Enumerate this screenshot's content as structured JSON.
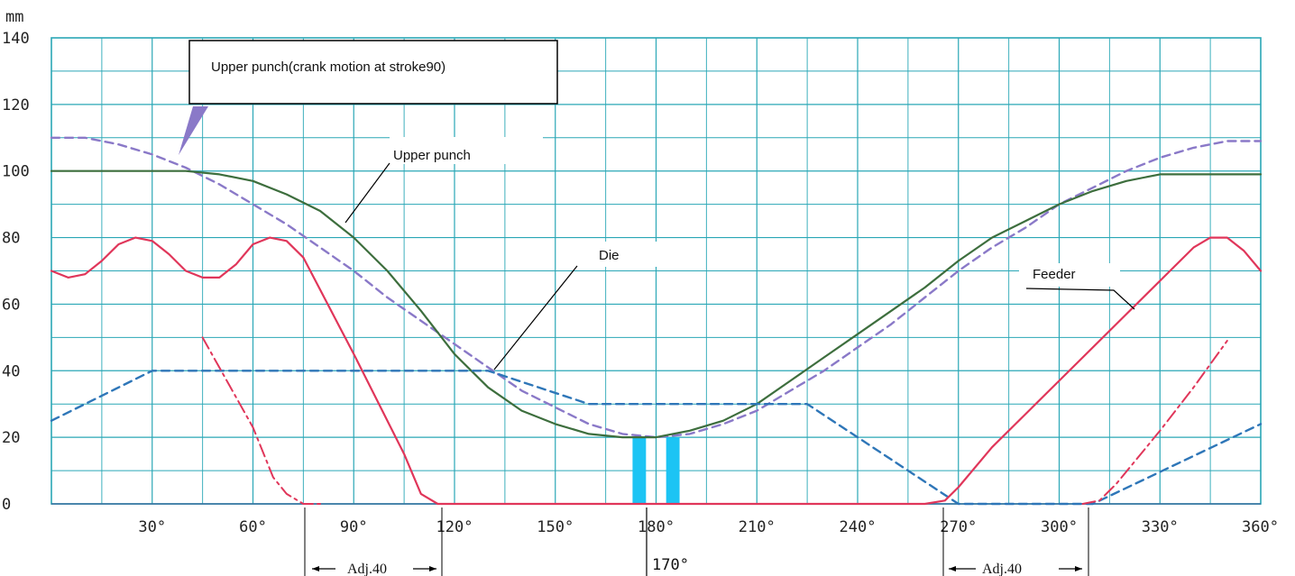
{
  "chart_data": {
    "type": "line",
    "title": "",
    "xlabel": "",
    "ylabel": "mm",
    "xlim": [
      0,
      360
    ],
    "ylim": [
      0,
      140
    ],
    "grid": true,
    "grid_color": "#2aa7b6",
    "xticks": [
      30,
      60,
      90,
      120,
      150,
      180,
      210,
      240,
      270,
      300,
      330,
      360
    ],
    "xtick_labels": [
      "30°",
      "60°",
      "90°",
      "120°",
      "150°",
      "180°",
      "210°",
      "240°",
      "270°",
      "300°",
      "330°",
      "360°"
    ],
    "yticks": [
      0,
      20,
      40,
      60,
      80,
      100,
      120,
      140
    ],
    "ytick_labels": [
      "0",
      "20",
      "40",
      "60",
      "80",
      "100",
      "120",
      "140"
    ],
    "series": [
      {
        "name": "Upper punch(crank motion at stroke90)",
        "color": "#8a79c8",
        "style": "dashed",
        "points": [
          [
            0,
            110
          ],
          [
            10,
            110
          ],
          [
            20,
            108
          ],
          [
            30,
            105
          ],
          [
            40,
            101
          ],
          [
            50,
            96
          ],
          [
            60,
            90
          ],
          [
            70,
            84
          ],
          [
            80,
            77
          ],
          [
            90,
            70
          ],
          [
            100,
            62
          ],
          [
            110,
            55
          ],
          [
            120,
            48
          ],
          [
            130,
            41
          ],
          [
            140,
            34
          ],
          [
            150,
            29
          ],
          [
            160,
            24
          ],
          [
            170,
            21
          ],
          [
            180,
            20
          ],
          [
            190,
            21
          ],
          [
            200,
            24
          ],
          [
            210,
            28
          ],
          [
            220,
            34
          ],
          [
            230,
            40
          ],
          [
            240,
            47
          ],
          [
            250,
            54
          ],
          [
            260,
            62
          ],
          [
            270,
            70
          ],
          [
            280,
            77
          ],
          [
            290,
            83
          ],
          [
            300,
            90
          ],
          [
            310,
            95
          ],
          [
            320,
            100
          ],
          [
            330,
            104
          ],
          [
            340,
            107
          ],
          [
            350,
            109
          ],
          [
            360,
            109
          ]
        ]
      },
      {
        "name": "Upper punch",
        "color": "#3d6e3d",
        "style": "solid",
        "points": [
          [
            0,
            100
          ],
          [
            40,
            100
          ],
          [
            50,
            99
          ],
          [
            60,
            97
          ],
          [
            70,
            93
          ],
          [
            80,
            88
          ],
          [
            90,
            80
          ],
          [
            100,
            70
          ],
          [
            110,
            58
          ],
          [
            120,
            45
          ],
          [
            130,
            35
          ],
          [
            140,
            28
          ],
          [
            150,
            24
          ],
          [
            160,
            21
          ],
          [
            170,
            20
          ],
          [
            180,
            20
          ],
          [
            190,
            22
          ],
          [
            200,
            25
          ],
          [
            210,
            30
          ],
          [
            220,
            37
          ],
          [
            230,
            44
          ],
          [
            240,
            51
          ],
          [
            250,
            58
          ],
          [
            260,
            65
          ],
          [
            270,
            73
          ],
          [
            280,
            80
          ],
          [
            290,
            85
          ],
          [
            300,
            90
          ],
          [
            310,
            94
          ],
          [
            320,
            97
          ],
          [
            330,
            99
          ],
          [
            340,
            99
          ],
          [
            350,
            99
          ],
          [
            360,
            99
          ]
        ]
      },
      {
        "name": "Die",
        "color": "#2e76b8",
        "style": "dashed",
        "points": [
          [
            0,
            25
          ],
          [
            30,
            40
          ],
          [
            130,
            40
          ],
          [
            160,
            30
          ],
          [
            225,
            30
          ],
          [
            270,
            0
          ],
          [
            310,
            0
          ],
          [
            360,
            24
          ]
        ]
      },
      {
        "name": "Feeder",
        "color": "#e0365a",
        "style": "solid",
        "points": [
          [
            0,
            70
          ],
          [
            5,
            68
          ],
          [
            10,
            69
          ],
          [
            15,
            73
          ],
          [
            20,
            78
          ],
          [
            25,
            80
          ],
          [
            30,
            79
          ],
          [
            35,
            75
          ],
          [
            40,
            70
          ],
          [
            45,
            68
          ],
          [
            50,
            68
          ],
          [
            55,
            72
          ],
          [
            60,
            78
          ],
          [
            65,
            80
          ],
          [
            70,
            79
          ],
          [
            75,
            74
          ],
          [
            90,
            45
          ],
          [
            105,
            15
          ],
          [
            110,
            3
          ],
          [
            115,
            0
          ],
          [
            260,
            0
          ],
          [
            266,
            1
          ],
          [
            270,
            5
          ],
          [
            280,
            17
          ],
          [
            300,
            37
          ],
          [
            320,
            57
          ],
          [
            340,
            77
          ],
          [
            345,
            80
          ],
          [
            350,
            80
          ],
          [
            355,
            76
          ],
          [
            360,
            70
          ]
        ]
      },
      {
        "name": "",
        "color": "#e0365a",
        "style": "dashdot",
        "points": [
          [
            45,
            50
          ],
          [
            60,
            23
          ],
          [
            66,
            8
          ],
          [
            70,
            3
          ],
          [
            75,
            0
          ],
          [
            80,
            0
          ]
        ]
      },
      {
        "name": "",
        "color": "#e0365a",
        "style": "dashdot",
        "points": [
          [
            307,
            0
          ],
          [
            312,
            1
          ],
          [
            317,
            6
          ],
          [
            330,
            22
          ],
          [
            340,
            35
          ],
          [
            350,
            49
          ]
        ]
      }
    ],
    "bars": [
      {
        "x_start": 173,
        "x_end": 177,
        "height": 20,
        "color": "#1cc4f4"
      },
      {
        "x_start": 183,
        "x_end": 187,
        "height": 20,
        "color": "#1cc4f4"
      }
    ],
    "annotations": {
      "crank_box": "Upper punch(crank motion at stroke90)",
      "upper_punch": "Upper punch",
      "die": "Die",
      "feeder": "Feeder",
      "adj_left": "Adj.40",
      "adj_right": "Adj.40",
      "marker_170": "170°"
    }
  }
}
